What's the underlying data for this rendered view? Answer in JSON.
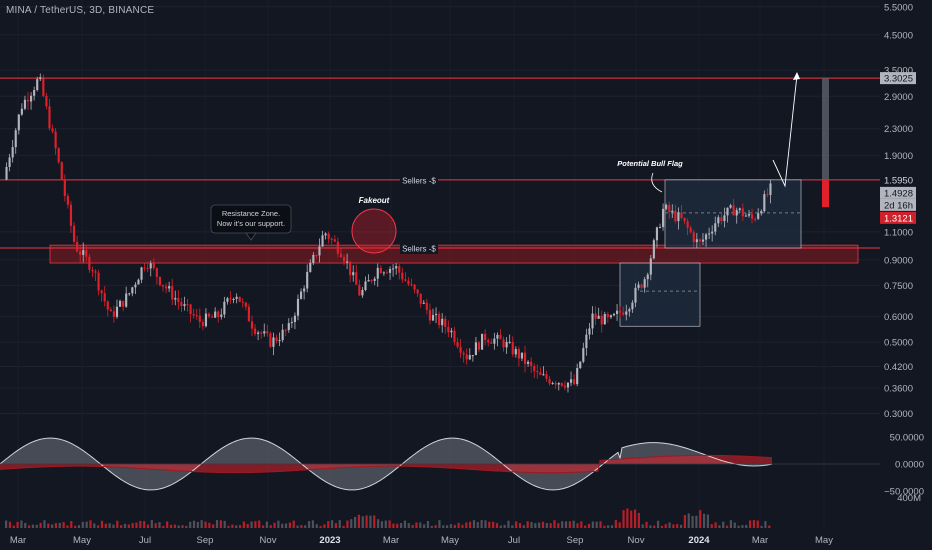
{
  "header": {
    "title": "MINA / TetherUS, 3D, BINANCE"
  },
  "colors": {
    "background": "#131722",
    "bull": "#b2b5be",
    "bear": "#e0202a",
    "resistance_line": "#f23645",
    "zone_fill": "#6b1a20",
    "box_fill": "#1e2a3d",
    "label_price": "#b2b5be",
    "label_red": "#d0202a"
  },
  "chart_data": {
    "type": "candlestick",
    "symbol": "MINA / TetherUS",
    "interval": "3D",
    "exchange": "BINANCE",
    "y_scale": "log",
    "ylim": [
      0.3,
      5.5
    ],
    "x_tick_labels": [
      "Mar",
      "May",
      "Jul",
      "Sep",
      "Nov",
      "2023",
      "Mar",
      "May",
      "Jul",
      "Sep",
      "Nov",
      "2024",
      "Mar",
      "May"
    ],
    "y_tick_labels": [
      "5.5000",
      "4.5000",
      "3.5000",
      "2.9000",
      "2.3000",
      "1.9000",
      "1.1000",
      "0.9000",
      "0.7500",
      "0.6000",
      "0.5000",
      "0.4200",
      "0.3600",
      "0.3000"
    ],
    "price_labels": [
      {
        "text": "3.3025",
        "value": 3.3025
      },
      {
        "text": "1.5950",
        "value": 1.595
      },
      {
        "text": "1.4928",
        "value": 1.4928
      },
      {
        "text": "2d 16h"
      },
      {
        "text": "1.3121",
        "value": 1.3121
      }
    ],
    "horizontal_levels": [
      {
        "value": 3.3025
      },
      {
        "value": 1.595,
        "label": "Sellers -$"
      },
      {
        "value": 0.98,
        "label": "Sellers -$"
      }
    ],
    "resistance_zone": {
      "low": 0.88,
      "high": 1.0
    },
    "annotations": [
      {
        "text": "Fakeout"
      },
      {
        "text": "Resistance Zone.\nNow it's our support."
      },
      {
        "text": "Potential Bull Flag"
      }
    ],
    "oscillator": {
      "tick_labels": [
        "50.0000",
        "0.0000",
        "−50.0000"
      ]
    },
    "volume": {
      "tick_labels": [
        "400M"
      ]
    },
    "price_anchors": [
      {
        "x": "Mar 2022",
        "y": 1.6
      },
      {
        "x": "Apr 2022",
        "y": 2.7
      },
      {
        "x": "Apr 2022",
        "y": 3.3
      },
      {
        "x": "May 2022",
        "y": 1.9
      },
      {
        "x": "May 2022",
        "y": 1.0
      },
      {
        "x": "Jun 2022",
        "y": 0.85
      },
      {
        "x": "Jun 2022",
        "y": 0.6
      },
      {
        "x": "Jul 2022",
        "y": 0.7
      },
      {
        "x": "Aug 2022",
        "y": 0.9
      },
      {
        "x": "Aug 2022",
        "y": 0.75
      },
      {
        "x": "Sep 2022",
        "y": 0.65
      },
      {
        "x": "Oct 2022",
        "y": 0.58
      },
      {
        "x": "Nov 2022",
        "y": 0.6
      },
      {
        "x": "Nov 2022",
        "y": 0.72
      },
      {
        "x": "Dec 2022",
        "y": 0.56
      },
      {
        "x": "Dec 2022",
        "y": 0.5
      },
      {
        "x": "Jan 2023",
        "y": 0.55
      },
      {
        "x": "Jan 2023",
        "y": 0.8
      },
      {
        "x": "Feb 2023",
        "y": 1.1
      },
      {
        "x": "Feb 2023",
        "y": 0.95
      },
      {
        "x": "Mar 2023",
        "y": 0.7
      },
      {
        "x": "Mar 2023",
        "y": 0.85
      },
      {
        "x": "Apr 2023",
        "y": 0.85
      },
      {
        "x": "May 2023",
        "y": 0.72
      },
      {
        "x": "May 2023",
        "y": 0.6
      },
      {
        "x": "Jun 2023",
        "y": 0.55
      },
      {
        "x": "Jun 2023",
        "y": 0.45
      },
      {
        "x": "Jul 2023",
        "y": 0.52
      },
      {
        "x": "Aug 2023",
        "y": 0.5
      },
      {
        "x": "Aug 2023",
        "y": 0.45
      },
      {
        "x": "Sep 2023",
        "y": 0.39
      },
      {
        "x": "Oct 2023",
        "y": 0.38
      },
      {
        "x": "Oct 2023",
        "y": 0.37
      },
      {
        "x": "Oct 2023",
        "y": 0.6
      },
      {
        "x": "Nov 2023",
        "y": 0.58
      },
      {
        "x": "Nov 2023",
        "y": 0.65
      },
      {
        "x": "Dec 2023",
        "y": 0.8
      },
      {
        "x": "Dec 2023",
        "y": 1.3
      },
      {
        "x": "Jan 2024",
        "y": 1.2
      },
      {
        "x": "Jan 2024",
        "y": 1.0
      },
      {
        "x": "Feb 2024",
        "y": 1.2
      },
      {
        "x": "Feb 2024",
        "y": 1.3
      },
      {
        "x": "Mar 2024",
        "y": 1.2
      },
      {
        "x": "Mar 2024",
        "y": 1.49
      }
    ]
  }
}
